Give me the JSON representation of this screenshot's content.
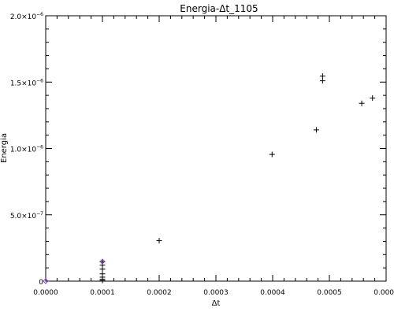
{
  "chart_data": {
    "type": "scatter",
    "title": "Energia-Δt_1105",
    "xlabel": "Δt",
    "ylabel": "Energia",
    "xlim": [
      0.0,
      0.0006
    ],
    "ylim": [
      0.0,
      2e-06
    ],
    "grid": false,
    "x_ticks": [
      {
        "value": 0.0,
        "label": "0.0000"
      },
      {
        "value": 0.0001,
        "label": "0.0001"
      },
      {
        "value": 0.0002,
        "label": "0.0002"
      },
      {
        "value": 0.0003,
        "label": "0.0003"
      },
      {
        "value": 0.0004,
        "label": "0.0004"
      },
      {
        "value": 0.0005,
        "label": "0.0005"
      },
      {
        "value": 0.0006,
        "label": "0.0006"
      }
    ],
    "y_ticks": [
      {
        "value": 0.0,
        "label": "0",
        "mantissa": "0",
        "exponent": ""
      },
      {
        "value": 5e-07,
        "label": "5.0×10⁻⁷",
        "mantissa": "5.0×10",
        "exponent": "−7"
      },
      {
        "value": 1e-06,
        "label": "1.0×10⁻⁶",
        "mantissa": "1.0×10",
        "exponent": "−6"
      },
      {
        "value": 1.5e-06,
        "label": "1.5×10⁻⁶",
        "mantissa": "1.5×10",
        "exponent": "−6"
      },
      {
        "value": 2e-06,
        "label": "2.0×10⁻⁶",
        "mantissa": "2.0×10",
        "exponent": "−6"
      }
    ],
    "series": [
      {
        "marker": "plus",
        "color": "#000000",
        "points": [
          {
            "x": 0.0001,
            "y": 1.45e-07
          },
          {
            "x": 0.0001,
            "y": 1.2e-07
          },
          {
            "x": 0.0001,
            "y": 9e-08
          },
          {
            "x": 0.0001,
            "y": 5.5e-08
          },
          {
            "x": 0.0001,
            "y": 3e-08
          },
          {
            "x": 0.0001,
            "y": 1.5e-08
          },
          {
            "x": 0.0001,
            "y": 5e-09
          },
          {
            "x": 0.0002,
            "y": 3.05e-07
          },
          {
            "x": 0.000399,
            "y": 9.55e-07
          },
          {
            "x": 0.000477,
            "y": 1.14e-06
          },
          {
            "x": 0.000488,
            "y": 1.51e-06
          },
          {
            "x": 0.000488,
            "y": 1.545e-06
          },
          {
            "x": 0.000557,
            "y": 1.34e-06
          },
          {
            "x": 0.000576,
            "y": 1.38e-06
          }
        ]
      },
      {
        "marker": "diamond",
        "color": "#8a3fbf",
        "points": [
          {
            "x": 0.0001,
            "y": 1.48e-07
          },
          {
            "x": 0.0,
            "y": 0.0
          }
        ]
      }
    ]
  }
}
